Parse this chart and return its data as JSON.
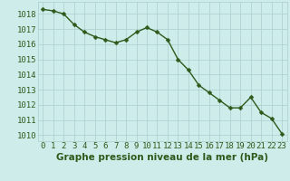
{
  "x": [
    0,
    1,
    2,
    3,
    4,
    5,
    6,
    7,
    8,
    9,
    10,
    11,
    12,
    13,
    14,
    15,
    16,
    17,
    18,
    19,
    20,
    21,
    22,
    23
  ],
  "y": [
    1018.3,
    1018.2,
    1018.0,
    1017.3,
    1016.8,
    1016.5,
    1016.3,
    1016.1,
    1016.3,
    1016.8,
    1017.1,
    1016.8,
    1016.3,
    1015.0,
    1014.3,
    1013.3,
    1012.8,
    1012.3,
    1011.8,
    1011.8,
    1012.5,
    1011.5,
    1011.1,
    1010.1
  ],
  "line_color": "#2d5a1b",
  "marker": "D",
  "marker_size": 2.5,
  "linewidth": 1.0,
  "bg_color": "#ceecea",
  "grid_color": "#aacfcc",
  "xlabel": "Graphe pression niveau de la mer (hPa)",
  "xlabel_fontsize": 7.5,
  "ytick_labels": [
    1010,
    1011,
    1012,
    1013,
    1014,
    1015,
    1016,
    1017,
    1018
  ],
  "ylim": [
    1009.6,
    1018.8
  ],
  "xlim": [
    -0.5,
    23.5
  ],
  "tick_fontsize": 6.5,
  "axis_label_color": "#2d5a1b"
}
